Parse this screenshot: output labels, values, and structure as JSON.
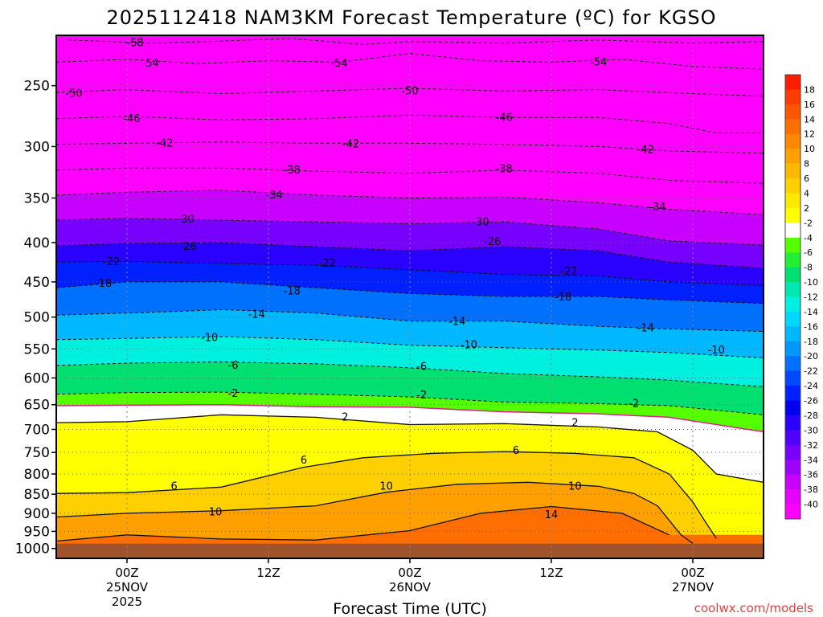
{
  "title": "2025112418 NAM3KM Forecast Temperature (ºC) for KGSO",
  "credit": "coolwx.com/models",
  "chart_data": {
    "type": "heatmap",
    "title": "2025112418 NAM3KM Forecast Temperature (ºC) for KGSO",
    "xlabel": "Forecast Time (UTC)",
    "ylabel": "",
    "x_range_hours": [
      -6,
      54
    ],
    "y_range_hPa": [
      215,
      1030
    ],
    "y_scale": "log",
    "y_ticks": [
      250,
      300,
      350,
      400,
      450,
      500,
      550,
      600,
      650,
      700,
      750,
      800,
      850,
      900,
      950,
      1000
    ],
    "x_ticks": [
      {
        "hour": 0,
        "lines": [
          "00Z",
          "25NOV",
          "2025"
        ]
      },
      {
        "hour": 12,
        "lines": [
          "12Z"
        ]
      },
      {
        "hour": 24,
        "lines": [
          "00Z",
          "26NOV"
        ]
      },
      {
        "hour": 36,
        "lines": [
          "12Z"
        ]
      },
      {
        "hour": 48,
        "lines": [
          "00Z",
          "27NOV"
        ]
      }
    ],
    "grid": true,
    "legend": "right colorbar",
    "colorbar": {
      "ticks": [
        18,
        16,
        14,
        12,
        10,
        8,
        6,
        4,
        2,
        -2,
        -4,
        -6,
        -8,
        -10,
        -12,
        -14,
        -16,
        -18,
        -20,
        -22,
        -24,
        -26,
        -28,
        -30,
        -32,
        -34,
        -36,
        -38,
        -40
      ],
      "colors": [
        "#ff1a00",
        "#ff3c00",
        "#ff5500",
        "#ff6e00",
        "#ff8800",
        "#ffa000",
        "#ffb800",
        "#ffd000",
        "#ffe800",
        "#ffff00",
        "#ffffff",
        "#55ff00",
        "#22ee33",
        "#00e070",
        "#00e8b0",
        "#00f0e0",
        "#00d8ff",
        "#00b8ff",
        "#0098ff",
        "#0070ff",
        "#0048ff",
        "#0020ff",
        "#0000f0",
        "#2a00ff",
        "#5000ff",
        "#7800ff",
        "#a000ff",
        "#c800ff",
        "#e800ff",
        "#ff00ff"
      ]
    },
    "series": [
      {
        "name": "-58",
        "values": [
          [
            -5,
            218
          ],
          [
            2,
            220
          ],
          [
            7,
            219
          ],
          [
            14,
            217
          ],
          [
            20,
            221
          ],
          [
            24,
            219
          ],
          [
            32,
            220
          ],
          [
            40,
            218
          ],
          [
            48,
            220
          ],
          [
            54,
            219
          ]
        ]
      },
      {
        "name": "-54",
        "values": [
          [
            -6,
            233
          ],
          [
            0,
            231
          ],
          [
            6,
            234
          ],
          [
            12,
            232
          ],
          [
            18,
            233
          ],
          [
            24,
            227
          ],
          [
            30,
            232
          ],
          [
            36,
            233
          ],
          [
            42,
            231
          ],
          [
            48,
            236
          ],
          [
            54,
            238
          ]
        ]
      },
      {
        "name": "-50",
        "values": [
          [
            -6,
            255
          ],
          [
            0,
            253
          ],
          [
            8,
            256
          ],
          [
            16,
            254
          ],
          [
            24,
            252
          ],
          [
            32,
            254
          ],
          [
            40,
            253
          ],
          [
            48,
            256
          ],
          [
            54,
            258
          ]
        ]
      },
      {
        "name": "-46",
        "values": [
          [
            -6,
            276
          ],
          [
            0,
            274
          ],
          [
            8,
            277
          ],
          [
            16,
            276
          ],
          [
            24,
            273
          ],
          [
            32,
            275
          ],
          [
            40,
            275
          ],
          [
            46,
            280
          ],
          [
            50,
            288
          ],
          [
            54,
            288
          ]
        ]
      },
      {
        "name": "-42",
        "values": [
          [
            -6,
            298
          ],
          [
            0,
            297
          ],
          [
            8,
            296
          ],
          [
            16,
            297
          ],
          [
            24,
            297
          ],
          [
            32,
            298
          ],
          [
            40,
            300
          ],
          [
            46,
            304
          ],
          [
            54,
            306
          ]
        ]
      },
      {
        "name": "-38",
        "values": [
          [
            -6,
            322
          ],
          [
            0,
            320
          ],
          [
            8,
            320
          ],
          [
            16,
            323
          ],
          [
            24,
            325
          ],
          [
            32,
            322
          ],
          [
            40,
            325
          ],
          [
            46,
            332
          ],
          [
            54,
            335
          ]
        ]
      },
      {
        "name": "-34",
        "values": [
          [
            -6,
            347
          ],
          [
            0,
            344
          ],
          [
            8,
            342
          ],
          [
            16,
            347
          ],
          [
            24,
            350
          ],
          [
            32,
            349
          ],
          [
            40,
            355
          ],
          [
            46,
            362
          ],
          [
            54,
            368
          ]
        ]
      },
      {
        "name": "-30",
        "values": [
          [
            -6,
            374
          ],
          [
            0,
            372
          ],
          [
            8,
            374
          ],
          [
            16,
            376
          ],
          [
            24,
            378
          ],
          [
            32,
            376
          ],
          [
            40,
            384
          ],
          [
            46,
            398
          ],
          [
            54,
            403
          ]
        ]
      },
      {
        "name": "-26",
        "values": [
          [
            -6,
            404
          ],
          [
            0,
            401
          ],
          [
            8,
            400
          ],
          [
            16,
            405
          ],
          [
            24,
            410
          ],
          [
            32,
            405
          ],
          [
            40,
            410
          ],
          [
            46,
            424
          ],
          [
            54,
            432
          ]
        ]
      },
      {
        "name": "-22",
        "values": [
          [
            -6,
            424
          ],
          [
            0,
            423
          ],
          [
            8,
            426
          ],
          [
            16,
            428
          ],
          [
            24,
            434
          ],
          [
            32,
            440
          ],
          [
            40,
            442
          ],
          [
            46,
            450
          ],
          [
            54,
            455
          ]
        ]
      },
      {
        "name": "-18",
        "values": [
          [
            -6,
            458
          ],
          [
            0,
            450
          ],
          [
            8,
            450
          ],
          [
            16,
            458
          ],
          [
            24,
            466
          ],
          [
            32,
            470
          ],
          [
            40,
            470
          ],
          [
            46,
            475
          ],
          [
            54,
            480
          ]
        ]
      },
      {
        "name": "-14",
        "values": [
          [
            -6,
            497
          ],
          [
            0,
            494
          ],
          [
            8,
            489
          ],
          [
            16,
            494
          ],
          [
            24,
            506
          ],
          [
            32,
            506
          ],
          [
            40,
            514
          ],
          [
            46,
            518
          ],
          [
            54,
            522
          ]
        ]
      },
      {
        "name": "-10",
        "values": [
          [
            -6,
            535
          ],
          [
            0,
            533
          ],
          [
            8,
            530
          ],
          [
            16,
            535
          ],
          [
            24,
            544
          ],
          [
            32,
            548
          ],
          [
            40,
            552
          ],
          [
            46,
            556
          ],
          [
            54,
            565
          ]
        ]
      },
      {
        "name": "-6",
        "values": [
          [
            -6,
            578
          ],
          [
            0,
            574
          ],
          [
            8,
            572
          ],
          [
            16,
            575
          ],
          [
            24,
            582
          ],
          [
            32,
            592
          ],
          [
            40,
            598
          ],
          [
            46,
            604
          ],
          [
            54,
            616
          ]
        ]
      },
      {
        "name": "-2",
        "values": [
          [
            -6,
            630
          ],
          [
            0,
            627
          ],
          [
            8,
            626
          ],
          [
            16,
            630
          ],
          [
            24,
            635
          ],
          [
            32,
            645
          ],
          [
            40,
            648
          ],
          [
            46,
            652
          ],
          [
            54,
            670
          ]
        ]
      },
      {
        "name": "0",
        "values": [
          [
            -6,
            652
          ],
          [
            0,
            651
          ],
          [
            8,
            650
          ],
          [
            16,
            654
          ],
          [
            24,
            655
          ],
          [
            32,
            664
          ],
          [
            40,
            668
          ],
          [
            46,
            675
          ],
          [
            54,
            705
          ]
        ]
      },
      {
        "name": "2",
        "values": [
          [
            -6,
            686
          ],
          [
            0,
            684
          ],
          [
            8,
            670
          ],
          [
            16,
            675
          ],
          [
            24,
            690
          ],
          [
            32,
            688
          ],
          [
            40,
            695
          ],
          [
            45,
            705
          ],
          [
            48,
            745
          ],
          [
            50,
            800
          ],
          [
            54,
            820
          ]
        ]
      },
      {
        "name": "6",
        "values": [
          [
            -6,
            848
          ],
          [
            0,
            846
          ],
          [
            8,
            832
          ],
          [
            15,
            784
          ],
          [
            20,
            762
          ],
          [
            26,
            752
          ],
          [
            32,
            748
          ],
          [
            38,
            752
          ],
          [
            43,
            762
          ],
          [
            46,
            800
          ],
          [
            48,
            870
          ],
          [
            49,
            920
          ],
          [
            50,
            970
          ]
        ]
      },
      {
        "name": "10",
        "values": [
          [
            -6,
            910
          ],
          [
            0,
            900
          ],
          [
            8,
            893
          ],
          [
            16,
            880
          ],
          [
            22,
            845
          ],
          [
            28,
            825
          ],
          [
            34,
            820
          ],
          [
            40,
            830
          ],
          [
            43,
            848
          ],
          [
            45,
            880
          ],
          [
            47,
            960
          ],
          [
            48,
            985
          ]
        ]
      },
      {
        "name": "14",
        "values": [
          [
            -6,
            978
          ],
          [
            0,
            960
          ],
          [
            8,
            972
          ],
          [
            16,
            975
          ],
          [
            24,
            948
          ],
          [
            30,
            900
          ],
          [
            36,
            882
          ],
          [
            42,
            900
          ],
          [
            46,
            960
          ]
        ]
      }
    ],
    "contour_labels": [
      {
        "text": "-58",
        "x": 0.7,
        "y": 220
      },
      {
        "text": "-54",
        "x": 2.0,
        "y": 234
      },
      {
        "text": "-54",
        "x": 18.0,
        "y": 234
      },
      {
        "text": "-54",
        "x": 40.0,
        "y": 233
      },
      {
        "text": "-50",
        "x": -4.5,
        "y": 256
      },
      {
        "text": "-50",
        "x": 24.0,
        "y": 254
      },
      {
        "text": "-46",
        "x": 0.4,
        "y": 276
      },
      {
        "text": "-46",
        "x": 32.0,
        "y": 275
      },
      {
        "text": "-42",
        "x": 3.2,
        "y": 297
      },
      {
        "text": "-42",
        "x": 19.0,
        "y": 298
      },
      {
        "text": "-42",
        "x": 44.0,
        "y": 303
      },
      {
        "text": "-38",
        "x": 14.0,
        "y": 322
      },
      {
        "text": "-38",
        "x": 32.0,
        "y": 321
      },
      {
        "text": "-34",
        "x": 12.5,
        "y": 347
      },
      {
        "text": "-34",
        "x": 45.0,
        "y": 360
      },
      {
        "text": "-30",
        "x": 5.0,
        "y": 373
      },
      {
        "text": "-30",
        "x": 30.0,
        "y": 376
      },
      {
        "text": "-26",
        "x": 5.2,
        "y": 405
      },
      {
        "text": "-26",
        "x": 31.0,
        "y": 399
      },
      {
        "text": "-22",
        "x": -1.3,
        "y": 424
      },
      {
        "text": "-22",
        "x": 17.0,
        "y": 426
      },
      {
        "text": "-22",
        "x": 37.5,
        "y": 436
      },
      {
        "text": "-18",
        "x": -2.0,
        "y": 452
      },
      {
        "text": "-18",
        "x": 14.0,
        "y": 463
      },
      {
        "text": "-18",
        "x": 37.0,
        "y": 471
      },
      {
        "text": "-14",
        "x": 11.0,
        "y": 496
      },
      {
        "text": "-14",
        "x": 28.0,
        "y": 507
      },
      {
        "text": "-14",
        "x": 44.0,
        "y": 517
      },
      {
        "text": "-10",
        "x": 7.0,
        "y": 532
      },
      {
        "text": "-10",
        "x": 29.0,
        "y": 544
      },
      {
        "text": "-10",
        "x": 50.0,
        "y": 552
      },
      {
        "text": "-6",
        "x": 9.0,
        "y": 578
      },
      {
        "text": "-6",
        "x": 25.0,
        "y": 580
      },
      {
        "text": "-2",
        "x": 9.0,
        "y": 629
      },
      {
        "text": "-2",
        "x": 25.0,
        "y": 632
      },
      {
        "text": "-2",
        "x": 43.0,
        "y": 648
      },
      {
        "text": "2",
        "x": 18.5,
        "y": 675
      },
      {
        "text": "2",
        "x": 38.0,
        "y": 687
      },
      {
        "text": "6",
        "x": 15.0,
        "y": 768
      },
      {
        "text": "6",
        "x": 33.0,
        "y": 746
      },
      {
        "text": "6",
        "x": 4.0,
        "y": 830
      },
      {
        "text": "10",
        "x": 7.5,
        "y": 897
      },
      {
        "text": "10",
        "x": 22.0,
        "y": 830
      },
      {
        "text": "10",
        "x": 38.0,
        "y": 830
      },
      {
        "text": "14",
        "x": 36.0,
        "y": 905
      }
    ]
  }
}
